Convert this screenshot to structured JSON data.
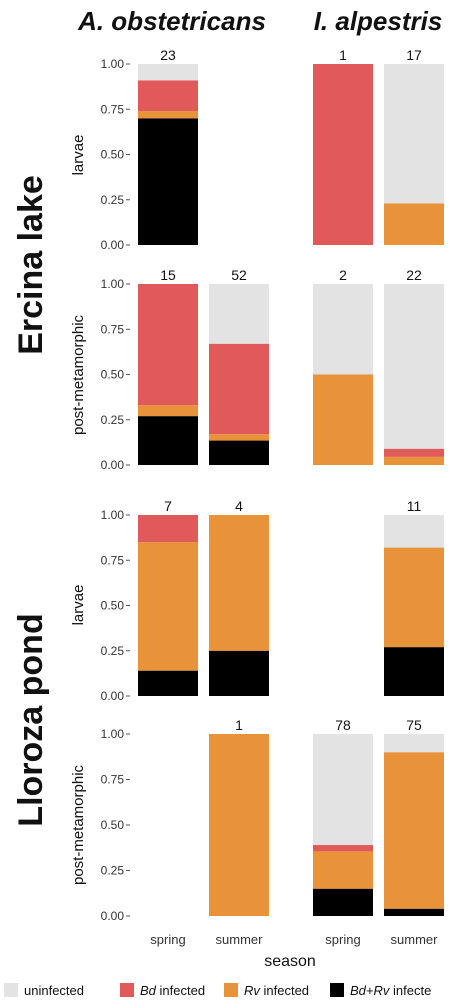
{
  "chart_data": {
    "type": "bar",
    "stacked": true,
    "species": [
      "A. obstetricans",
      "I. alpestris"
    ],
    "sites": [
      "Ercina lake",
      "Lloroza pond"
    ],
    "stages": [
      "larvae",
      "post-metamorphic"
    ],
    "seasons": [
      "spring",
      "summer"
    ],
    "xlabel": "season",
    "y_ticks": [
      "0.00",
      "0.25",
      "0.50",
      "0.75",
      "1.00"
    ],
    "ylim": [
      0,
      1
    ],
    "colors": {
      "uninfected": "#e3e3e3",
      "bd": "#e05a5a",
      "rv": "#e8923a",
      "bdrv": "#000000"
    },
    "legend": {
      "placement": "bottom",
      "items": [
        {
          "key": "uninfected",
          "label": "uninfected"
        },
        {
          "key": "bd",
          "italic": "Bd",
          "label": " infected"
        },
        {
          "key": "rv",
          "italic": "Rv",
          "label": " infected"
        },
        {
          "key": "bdrv",
          "italic": "Bd+Rv",
          "label": " infecte"
        }
      ]
    },
    "bars": [
      {
        "site": "Ercina lake",
        "stage": "larvae",
        "species": "A. obstetricans",
        "season": "spring",
        "n": "23",
        "bdrv": 0.7,
        "rv": 0.04,
        "bd": 0.17
      },
      {
        "site": "Ercina lake",
        "stage": "larvae",
        "species": "I. alpestris",
        "season": "spring",
        "n": "1",
        "bdrv": 0.0,
        "rv": 0.0,
        "bd": 1.0
      },
      {
        "site": "Ercina lake",
        "stage": "larvae",
        "species": "I. alpestris",
        "season": "summer",
        "n": "17",
        "bdrv": 0.0,
        "rv": 0.23,
        "bd": 0.0
      },
      {
        "site": "Ercina lake",
        "stage": "post-metamorphic",
        "species": "A. obstetricans",
        "season": "spring",
        "n": "15",
        "bdrv": 0.27,
        "rv": 0.06,
        "bd": 0.67
      },
      {
        "site": "Ercina lake",
        "stage": "post-metamorphic",
        "species": "A. obstetricans",
        "season": "summer",
        "n": "52",
        "bdrv": 0.135,
        "rv": 0.035,
        "bd": 0.5
      },
      {
        "site": "Ercina lake",
        "stage": "post-metamorphic",
        "species": "I. alpestris",
        "season": "spring",
        "n": "2",
        "bdrv": 0.0,
        "rv": 0.5,
        "bd": 0.0
      },
      {
        "site": "Ercina lake",
        "stage": "post-metamorphic",
        "species": "I. alpestris",
        "season": "summer",
        "n": "22",
        "bdrv": 0.0,
        "rv": 0.045,
        "bd": 0.045
      },
      {
        "site": "Lloroza pond",
        "stage": "larvae",
        "species": "A. obstetricans",
        "season": "spring",
        "n": "7",
        "bdrv": 0.14,
        "rv": 0.71,
        "bd": 0.15
      },
      {
        "site": "Lloroza pond",
        "stage": "larvae",
        "species": "A. obstetricans",
        "season": "summer",
        "n": "4",
        "bdrv": 0.25,
        "rv": 0.75,
        "bd": 0.0
      },
      {
        "site": "Lloroza pond",
        "stage": "larvae",
        "species": "I. alpestris",
        "season": "summer",
        "n": "11",
        "bdrv": 0.27,
        "rv": 0.55,
        "bd": 0.0
      },
      {
        "site": "Lloroza pond",
        "stage": "post-metamorphic",
        "species": "A. obstetricans",
        "season": "summer",
        "n": "1",
        "bdrv": 0.0,
        "rv": 1.0,
        "bd": 0.0
      },
      {
        "site": "Lloroza pond",
        "stage": "post-metamorphic",
        "species": "I. alpestris",
        "season": "spring",
        "n": "78",
        "bdrv": 0.15,
        "rv": 0.205,
        "bd": 0.035
      },
      {
        "site": "Lloroza pond",
        "stage": "post-metamorphic",
        "species": "I. alpestris",
        "season": "summer",
        "n": "75",
        "bdrv": 0.04,
        "rv": 0.86,
        "bd": 0.0
      }
    ]
  }
}
